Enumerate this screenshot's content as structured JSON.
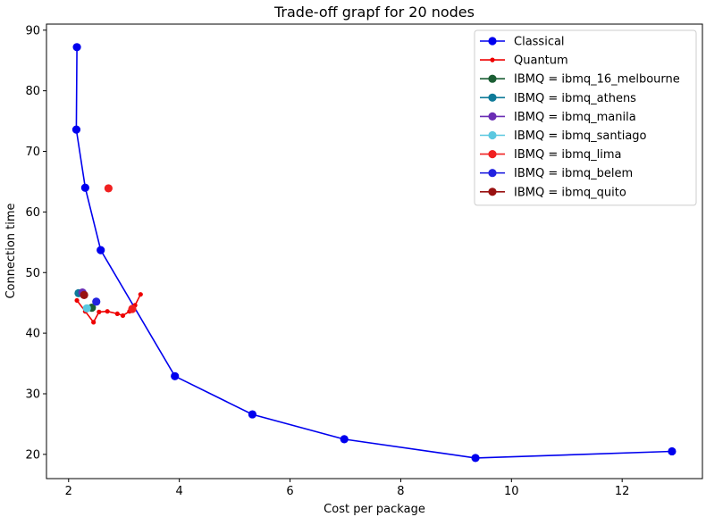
{
  "chart_data": {
    "type": "scatter",
    "title": "Trade-off grapf for 20 nodes",
    "xlabel": "Cost per package",
    "ylabel": "Connection time",
    "xlim": [
      1.6,
      13.45
    ],
    "ylim": [
      16,
      91
    ],
    "xticks": [
      2,
      4,
      6,
      8,
      10,
      12
    ],
    "yticks": [
      20,
      30,
      40,
      50,
      60,
      70,
      80,
      90
    ],
    "grid": false,
    "legend_position": "top-right",
    "series": [
      {
        "name": "Classical",
        "color": "#0000ee",
        "marker": "circle",
        "line": true,
        "points": [
          [
            2.15,
            87.2
          ],
          [
            2.14,
            73.6
          ],
          [
            2.3,
            64.0
          ],
          [
            2.58,
            53.7
          ],
          [
            3.92,
            32.9
          ],
          [
            5.32,
            26.6
          ],
          [
            6.98,
            22.5
          ],
          [
            9.35,
            19.4
          ],
          [
            12.9,
            20.5
          ]
        ]
      },
      {
        "name": "Quantum",
        "color": "#ee0000",
        "marker": "small-circle",
        "line": true,
        "points": [
          [
            2.15,
            45.4
          ],
          [
            2.3,
            43.6
          ],
          [
            2.45,
            41.8
          ],
          [
            2.55,
            43.5
          ],
          [
            2.7,
            43.6
          ],
          [
            2.88,
            43.2
          ],
          [
            2.98,
            42.9
          ],
          [
            3.1,
            43.6
          ],
          [
            3.2,
            44.6
          ],
          [
            3.3,
            46.4
          ]
        ]
      },
      {
        "name": "IBMQ = ibmq_16_melbourne",
        "color": "#1b5e34",
        "marker": "circle",
        "line": false,
        "points": [
          [
            2.42,
            44.2
          ]
        ]
      },
      {
        "name": "IBMQ = ibmq_athens",
        "color": "#0e7a99",
        "marker": "circle",
        "line": false,
        "points": [
          [
            2.18,
            46.6
          ]
        ]
      },
      {
        "name": "IBMQ = ibmq_manila",
        "color": "#6a2db4",
        "marker": "circle",
        "line": false,
        "points": [
          [
            2.25,
            46.7
          ]
        ]
      },
      {
        "name": "IBMQ = ibmq_santiago",
        "color": "#5bc8e0",
        "marker": "circle",
        "line": false,
        "points": [
          [
            2.33,
            44.1
          ]
        ]
      },
      {
        "name": "IBMQ = ibmq_lima",
        "color": "#f02020",
        "marker": "circle",
        "line": false,
        "points": [
          [
            2.72,
            63.9
          ],
          [
            3.15,
            44.0
          ]
        ]
      },
      {
        "name": "IBMQ = ibmq_belem",
        "color": "#2222e0",
        "marker": "circle",
        "line": false,
        "points": [
          [
            2.5,
            45.2
          ]
        ]
      },
      {
        "name": "IBMQ = ibmq_quito",
        "color": "#991111",
        "marker": "circle",
        "line": false,
        "points": [
          [
            2.28,
            46.3
          ]
        ]
      }
    ]
  }
}
